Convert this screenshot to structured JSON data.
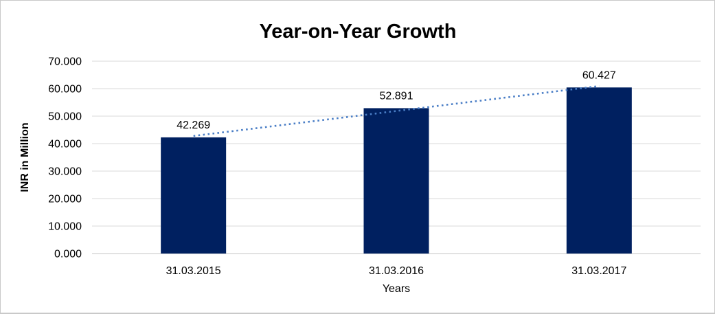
{
  "window": {
    "background": "#ffffff",
    "border_color": "#c9c9c9"
  },
  "chart_data": {
    "type": "bar",
    "title": "Year-on-Year Growth",
    "xlabel": "Years",
    "ylabel": "INR in Million",
    "categories": [
      "31.03.2015",
      "31.03.2016",
      "31.03.2017"
    ],
    "series": [
      {
        "name": "INR in Million",
        "values": [
          42269,
          52891,
          60427
        ]
      }
    ],
    "data_labels": [
      "42.269",
      "52.891",
      "60.427"
    ],
    "ylim": [
      0,
      70000
    ],
    "y_tick_step": 10000,
    "y_tick_labels": [
      "0.000",
      "10.000",
      "20.000",
      "30.000",
      "40.000",
      "50.000",
      "60.000",
      "70.000"
    ],
    "grid": true,
    "legend": "none",
    "bar_color": "#002060",
    "gridline_color": "#d9d9d9",
    "axis_line_color": "#c6c6c6",
    "text_color": "#000000",
    "trendline": {
      "type": "linear",
      "style": "dotted",
      "color": "#4A7EC6"
    }
  }
}
